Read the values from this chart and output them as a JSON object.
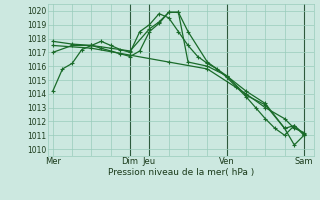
{
  "bg_color": "#cce8e0",
  "grid_color": "#99ccbb",
  "line_color": "#1a6b2a",
  "ylabel_min": 1010,
  "ylabel_max": 1020,
  "xlabel": "Pression niveau de la mer( hPa )",
  "x_tick_labels": [
    "Mer",
    "Dim",
    "Jeu",
    "Ven",
    "Sam"
  ],
  "x_tick_positions": [
    0,
    8,
    10,
    18,
    26
  ],
  "x_vlines": [
    8,
    10,
    18,
    26
  ],
  "xlim": [
    -0.5,
    27
  ],
  "ylim": [
    1009.5,
    1020.5
  ],
  "series1_x": [
    0,
    1,
    2,
    3,
    4,
    5,
    6,
    7,
    8,
    9,
    10,
    11,
    12,
    13,
    14,
    15,
    16,
    17,
    18,
    19,
    20,
    21,
    22,
    23,
    24,
    25,
    26
  ],
  "series1_y": [
    1014.2,
    1015.8,
    1016.2,
    1017.2,
    1017.5,
    1017.8,
    1017.5,
    1017.2,
    1017.0,
    1018.5,
    1019.0,
    1019.8,
    1019.5,
    1018.5,
    1017.5,
    1016.7,
    1016.2,
    1015.8,
    1015.2,
    1014.5,
    1013.8,
    1013.0,
    1012.2,
    1011.5,
    1011.0,
    1011.7,
    1011.0
  ],
  "series2_x": [
    0,
    2,
    4,
    6,
    8,
    10,
    11,
    12,
    13,
    14,
    16,
    18,
    20,
    22,
    24,
    25,
    26
  ],
  "series2_y": [
    1017.8,
    1017.6,
    1017.5,
    1017.3,
    1017.1,
    1018.7,
    1019.2,
    1019.9,
    1019.9,
    1018.5,
    1016.3,
    1015.3,
    1014.2,
    1013.3,
    1011.5,
    1011.7,
    1011.1
  ],
  "series3_x": [
    0,
    2,
    4,
    5,
    6,
    7,
    8,
    9,
    10,
    11,
    12,
    13,
    14,
    16,
    18,
    20,
    22,
    24,
    25,
    26
  ],
  "series3_y": [
    1017.0,
    1017.5,
    1017.5,
    1017.3,
    1017.1,
    1016.9,
    1016.7,
    1017.1,
    1018.5,
    1019.1,
    1019.9,
    1019.9,
    1016.3,
    1016.0,
    1015.3,
    1013.9,
    1013.2,
    1011.5,
    1010.3,
    1011.0
  ],
  "series4_x": [
    0,
    4,
    8,
    12,
    16,
    20,
    22,
    24,
    25,
    26
  ],
  "series4_y": [
    1017.5,
    1017.3,
    1016.8,
    1016.3,
    1015.8,
    1014.0,
    1013.0,
    1012.2,
    1011.5,
    1011.2
  ]
}
